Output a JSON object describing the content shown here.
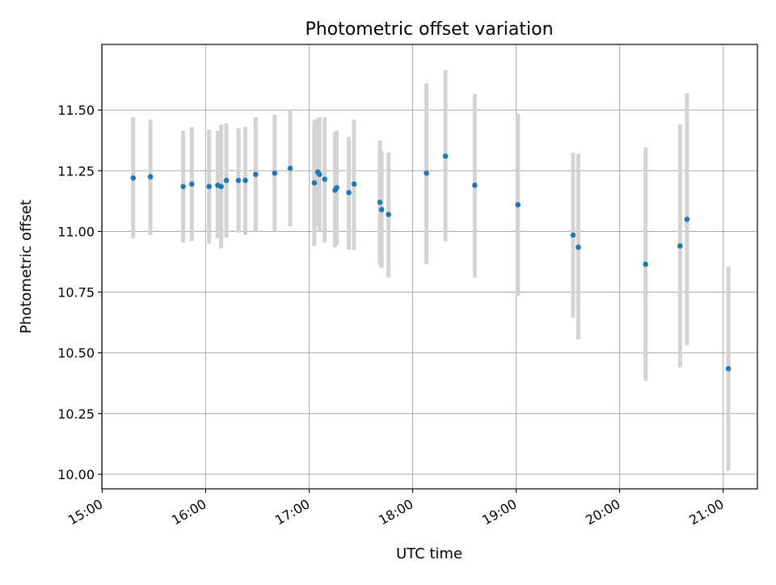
{
  "chart_data": {
    "type": "scatter",
    "title": "Photometric offset variation",
    "xlabel": "UTC time",
    "ylabel": "Photometric offset",
    "x_tick_labels": [
      "15:00",
      "16:00",
      "17:00",
      "18:00",
      "19:00",
      "20:00",
      "21:00"
    ],
    "y_tick_labels": [
      "10.00",
      "10.25",
      "10.50",
      "10.75",
      "11.00",
      "11.25",
      "11.50"
    ],
    "xlim": [
      "14:59:50",
      "21:19:50"
    ],
    "ylim": [
      9.94,
      11.77
    ],
    "grid": true,
    "colors": {
      "point": "#1f77b4",
      "errorbar": "#d3d3d3",
      "grid": "#b0b0b0"
    },
    "points": [
      {
        "x": "15:18",
        "y": 11.22,
        "low": 10.97,
        "high": 11.47
      },
      {
        "x": "15:28",
        "y": 11.225,
        "low": 10.985,
        "high": 11.46
      },
      {
        "x": "15:47",
        "y": 11.185,
        "low": 10.955,
        "high": 11.415
      },
      {
        "x": "15:52",
        "y": 11.195,
        "low": 10.96,
        "high": 11.43
      },
      {
        "x": "16:02",
        "y": 11.185,
        "low": 10.95,
        "high": 11.42
      },
      {
        "x": "16:07",
        "y": 11.19,
        "low": 10.97,
        "high": 11.415
      },
      {
        "x": "16:09",
        "y": 11.185,
        "low": 10.93,
        "high": 11.44
      },
      {
        "x": "16:12",
        "y": 11.21,
        "low": 10.975,
        "high": 11.445
      },
      {
        "x": "16:19",
        "y": 11.21,
        "low": 10.995,
        "high": 11.425
      },
      {
        "x": "16:23",
        "y": 11.21,
        "low": 10.985,
        "high": 11.43
      },
      {
        "x": "16:29",
        "y": 11.235,
        "low": 11.0,
        "high": 11.47
      },
      {
        "x": "16:40",
        "y": 11.24,
        "low": 11.0,
        "high": 11.48
      },
      {
        "x": "16:49",
        "y": 11.26,
        "low": 11.02,
        "high": 11.5
      },
      {
        "x": "17:03",
        "y": 11.2,
        "low": 10.94,
        "high": 11.46
      },
      {
        "x": "17:05",
        "y": 11.245,
        "low": 11.02,
        "high": 11.465
      },
      {
        "x": "17:06",
        "y": 11.235,
        "low": 11.0,
        "high": 11.47
      },
      {
        "x": "17:09",
        "y": 11.215,
        "low": 10.955,
        "high": 11.47
      },
      {
        "x": "17:15",
        "y": 11.17,
        "low": 10.935,
        "high": 11.41
      },
      {
        "x": "17:16",
        "y": 11.18,
        "low": 10.945,
        "high": 11.415
      },
      {
        "x": "17:23",
        "y": 11.16,
        "low": 10.925,
        "high": 11.39
      },
      {
        "x": "17:26",
        "y": 11.195,
        "low": 10.925,
        "high": 11.46
      },
      {
        "x": "17:41",
        "y": 11.12,
        "low": 10.865,
        "high": 11.375
      },
      {
        "x": "17:42",
        "y": 11.09,
        "low": 10.85,
        "high": 11.33
      },
      {
        "x": "17:46",
        "y": 11.07,
        "low": 10.81,
        "high": 11.325
      },
      {
        "x": "18:08",
        "y": 11.24,
        "low": 10.865,
        "high": 11.61
      },
      {
        "x": "18:19",
        "y": 11.31,
        "low": 10.96,
        "high": 11.665
      },
      {
        "x": "18:36",
        "y": 11.19,
        "low": 10.81,
        "high": 11.565
      },
      {
        "x": "19:01",
        "y": 11.11,
        "low": 10.735,
        "high": 11.485
      },
      {
        "x": "19:33",
        "y": 10.985,
        "low": 10.645,
        "high": 11.325
      },
      {
        "x": "19:36",
        "y": 10.935,
        "low": 10.555,
        "high": 11.32
      },
      {
        "x": "20:15",
        "y": 10.865,
        "low": 10.385,
        "high": 11.345
      },
      {
        "x": "20:35",
        "y": 10.94,
        "low": 10.44,
        "high": 11.44
      },
      {
        "x": "20:39",
        "y": 11.05,
        "low": 10.53,
        "high": 11.57
      },
      {
        "x": "21:03",
        "y": 10.435,
        "low": 10.015,
        "high": 10.855
      }
    ]
  }
}
